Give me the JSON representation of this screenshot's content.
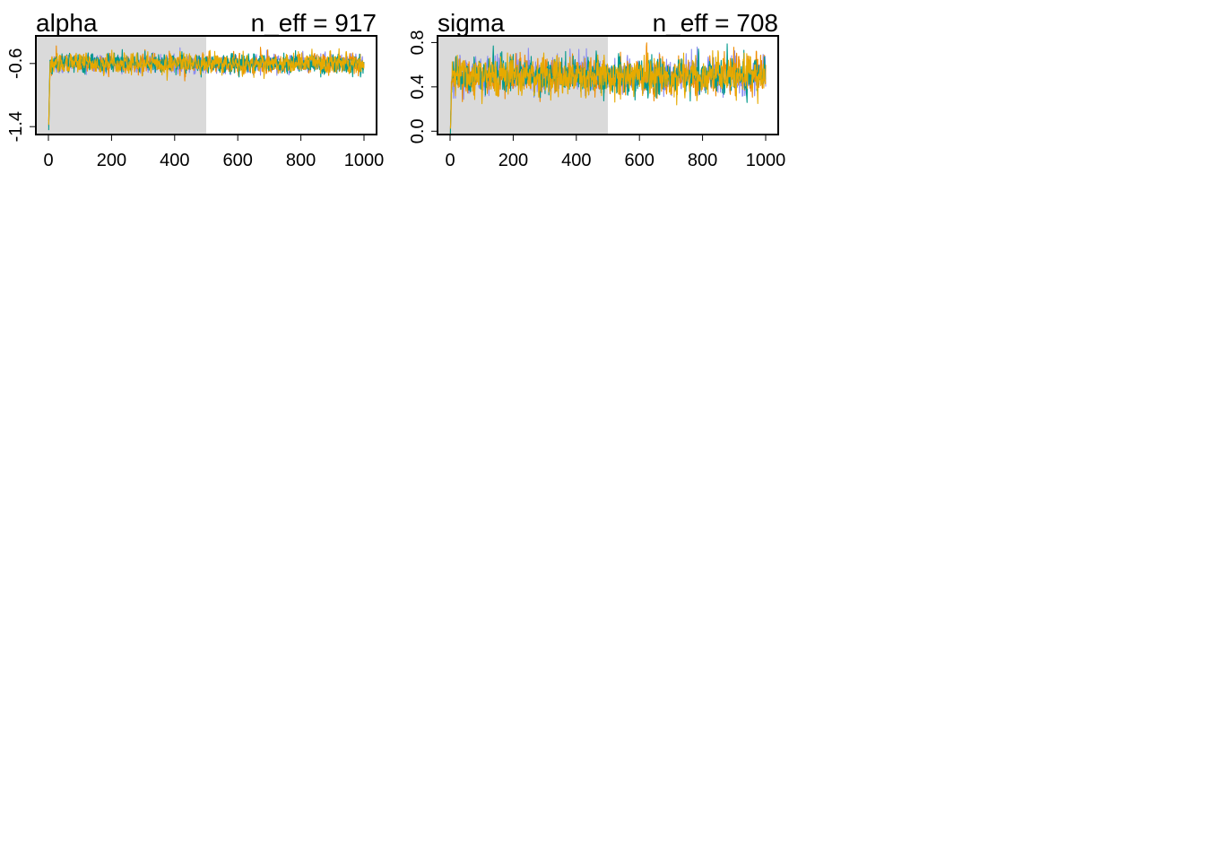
{
  "chart_data": [
    {
      "type": "line",
      "title": "alpha",
      "subtitle": "n_eff = 917",
      "xlabel": "",
      "ylabel": "",
      "xlim": [
        0,
        1000
      ],
      "ylim": [
        -1.5,
        -0.25
      ],
      "xticks": [
        "0",
        "200",
        "400",
        "600",
        "800",
        "1000"
      ],
      "yticks": [
        "-1.4",
        "-0.6"
      ],
      "warmup_range": [
        0,
        500
      ],
      "grid": false,
      "legend": "none",
      "center": -0.6,
      "spread": 0.055,
      "start_value": -1.4,
      "series": [
        {
          "color": "#8C8CF0",
          "values": []
        },
        {
          "color": "#F08C00",
          "values": []
        },
        {
          "color": "#00998C",
          "values": []
        },
        {
          "color": "#E6AA00",
          "values": []
        }
      ]
    },
    {
      "type": "line",
      "title": "sigma",
      "subtitle": "n_eff = 708",
      "xlabel": "",
      "ylabel": "",
      "xlim": [
        0,
        1000
      ],
      "ylim": [
        -0.03,
        0.86
      ],
      "xticks": [
        "0",
        "200",
        "400",
        "600",
        "800",
        "1000"
      ],
      "yticks": [
        "0.0",
        "0.4",
        "0.8"
      ],
      "warmup_range": [
        0,
        500
      ],
      "grid": false,
      "legend": "none",
      "center": 0.5,
      "spread": 0.075,
      "start_value": 0.0,
      "series": [
        {
          "color": "#8C8CF0",
          "values": []
        },
        {
          "color": "#F08C00",
          "values": []
        },
        {
          "color": "#00998C",
          "values": []
        },
        {
          "color": "#E6AA00",
          "values": []
        }
      ]
    }
  ]
}
